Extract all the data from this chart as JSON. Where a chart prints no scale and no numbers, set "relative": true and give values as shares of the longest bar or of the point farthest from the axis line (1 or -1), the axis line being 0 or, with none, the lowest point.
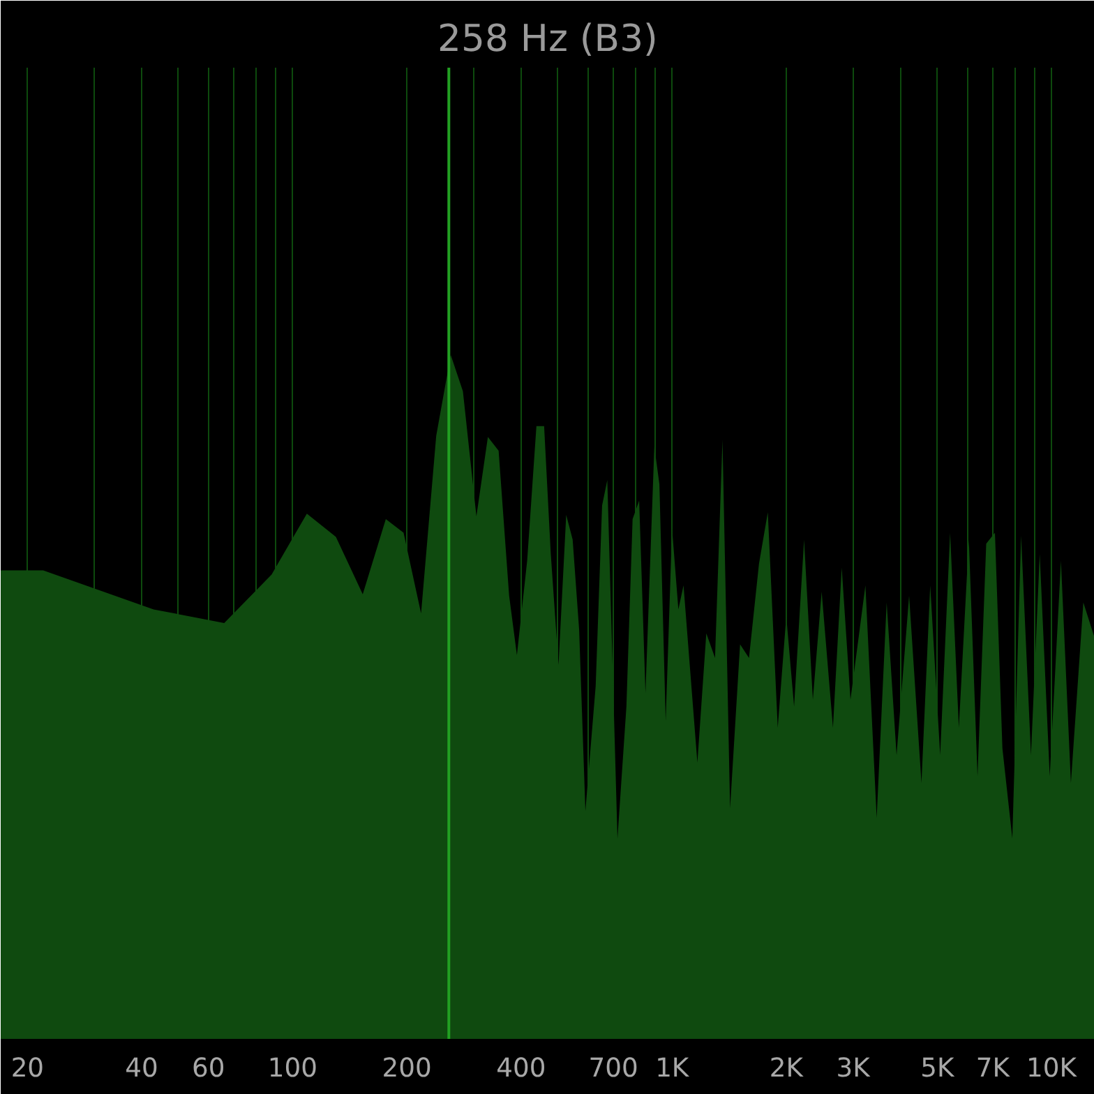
{
  "chart_data": {
    "type": "area",
    "title": "258 Hz (B3)",
    "relative": true,
    "log": "x",
    "grid": "x",
    "xlim": [
      17,
      13000
    ],
    "xticks": [
      20,
      {
        "value": 30,
        "label": null
      },
      40,
      {
        "value": 50,
        "label": null
      },
      60,
      {
        "value": 70,
        "label": null
      },
      {
        "value": 80,
        "label": null
      },
      {
        "value": 90,
        "label": null
      },
      100,
      200,
      {
        "value": 300,
        "label": null
      },
      400,
      {
        "value": 500,
        "label": null
      },
      {
        "value": 600,
        "label": null
      },
      700,
      {
        "value": 800,
        "label": null
      },
      {
        "value": 900,
        "label": null
      },
      {
        "value": 1000,
        "label": "1K"
      },
      {
        "value": 2000,
        "label": "2K"
      },
      {
        "value": 3000,
        "label": "3K"
      },
      {
        "value": 4000,
        "label": null
      },
      {
        "value": 5000,
        "label": "5K"
      },
      {
        "value": 6000,
        "label": null
      },
      {
        "value": 7000,
        "label": "7K"
      },
      {
        "value": 8000,
        "label": null
      },
      {
        "value": 9000,
        "label": null
      },
      {
        "value": 10000,
        "label": "10K"
      }
    ],
    "tick_labels": "x",
    "ref_lines": [
      {
        "axis": "x",
        "value": 258,
        "label": null,
        "color": "#22a022"
      }
    ],
    "series": [
      {
        "color": "#0f4a0f",
        "x": [
          17,
          22,
          43,
          66,
          88,
          109,
          130,
          153,
          176,
          196,
          218,
          239,
          261,
          281,
          305,
          327,
          349,
          372,
          390,
          415,
          439,
          460,
          479,
          502,
          526,
          547,
          569,
          591,
          629,
          654,
          675,
          718,
          758,
          787,
          819,
          851,
          898,
          926,
          962,
          1000,
          1039,
          1072,
          1166,
          1231,
          1298,
          1358,
          1422,
          1511,
          1595,
          1695,
          1788,
          1899,
          2000,
          2097,
          2228,
          2350,
          2479,
          2655,
          2800,
          2953,
          3233,
          3462,
          3678,
          3906,
          4215,
          4543,
          4791,
          5089,
          5406,
          5700,
          6056,
          6384,
          6730,
          7096,
          7425,
          7886,
          8316,
          8831,
          9312,
          9896,
          10591,
          11252,
          12134,
          12980
        ],
        "values": [
          0.685,
          0.685,
          0.628,
          0.608,
          0.679,
          0.768,
          0.734,
          0.65,
          0.76,
          0.74,
          0.622,
          0.882,
          1.0,
          0.947,
          0.764,
          0.88,
          0.86,
          0.648,
          0.561,
          0.699,
          0.896,
          0.896,
          0.709,
          0.547,
          0.766,
          0.73,
          0.598,
          0.333,
          0.516,
          0.78,
          0.817,
          0.293,
          0.486,
          0.76,
          0.787,
          0.506,
          0.866,
          0.811,
          0.465,
          0.746,
          0.628,
          0.663,
          0.404,
          0.593,
          0.557,
          0.876,
          0.337,
          0.577,
          0.557,
          0.695,
          0.77,
          0.455,
          0.618,
          0.486,
          0.73,
          0.496,
          0.654,
          0.455,
          0.689,
          0.496,
          0.663,
          0.323,
          0.638,
          0.415,
          0.648,
          0.374,
          0.663,
          0.415,
          0.74,
          0.455,
          0.73,
          0.384,
          0.724,
          0.74,
          0.425,
          0.293,
          0.736,
          0.415,
          0.709,
          0.384,
          0.699,
          0.374,
          0.638,
          0.587
        ]
      }
    ]
  }
}
